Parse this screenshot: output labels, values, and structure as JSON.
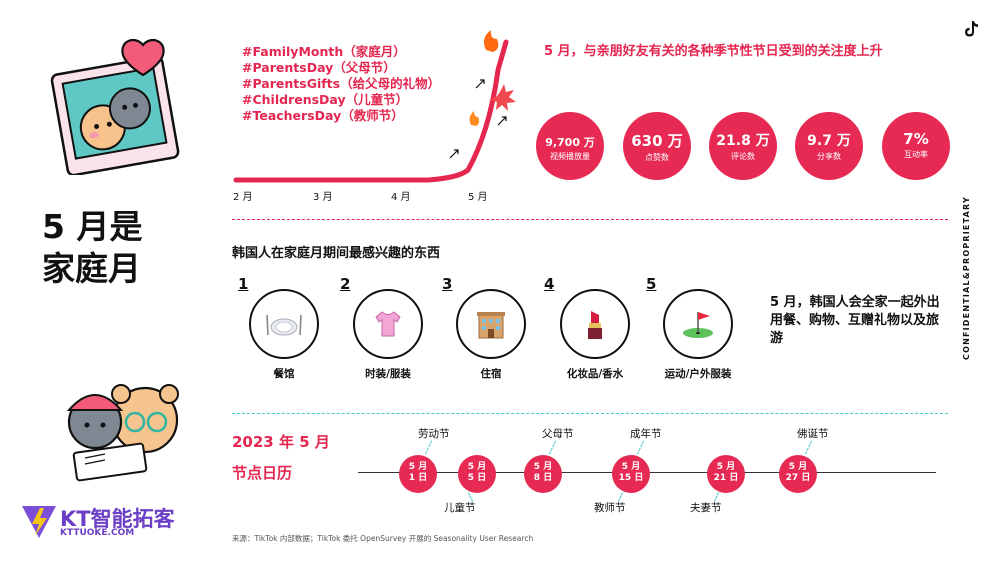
{
  "title_lines": [
    "5 月是",
    "家庭月"
  ],
  "hashtags": [
    "#FamilyMonth（家庭月）",
    "#ParentsDay（父母节）",
    "#ParentsGifts（给父母的礼物）",
    "#ChildrensDay（儿童节）",
    "#TeachersDay（教师节）"
  ],
  "trend": {
    "months": [
      "2 月",
      "3 月",
      "4 月",
      "5 月"
    ],
    "color": "#e5274f"
  },
  "trend_headline": "5 月，与亲朋好友有关的各种季节性节日受到的关注度上升",
  "stats": [
    {
      "value": "9,700 万",
      "label": "视频播放量"
    },
    {
      "value": "630 万",
      "label": "点赞数"
    },
    {
      "value": "21.8 万",
      "label": "评论数"
    },
    {
      "value": "9.7 万",
      "label": "分享数"
    },
    {
      "value": "7%",
      "label": "互动率"
    }
  ],
  "interests": {
    "title": "韩国人在家庭月期间最感兴趣的东西",
    "items": [
      {
        "rank": "1",
        "label": "餐馆",
        "icon": "plate-icon"
      },
      {
        "rank": "2",
        "label": "时装/服装",
        "icon": "shirt-icon"
      },
      {
        "rank": "3",
        "label": "住宿",
        "icon": "hotel-icon"
      },
      {
        "rank": "4",
        "label": "化妆品/香水",
        "icon": "lipstick-icon"
      },
      {
        "rank": "5",
        "label": "运动/户外服装",
        "icon": "golf-flag-icon"
      }
    ],
    "summary": "5 月，韩国人会全家一起外出用餐、购物、互赠礼物以及旅游"
  },
  "calendar": {
    "year_label": "2023 年 5 月",
    "subtitle": "节点日历",
    "dates": [
      {
        "month": "5 月",
        "day": "1 日",
        "holiday": "劳动节",
        "position": "above"
      },
      {
        "month": "5 月",
        "day": "5 日",
        "holiday": "儿童节",
        "position": "below"
      },
      {
        "month": "5 月",
        "day": "8 日",
        "holiday": "父母节",
        "position": "above"
      },
      {
        "month": "5 月",
        "day": "15 日",
        "holiday": "成年节",
        "position": "above",
        "holiday2": "教师节"
      },
      {
        "month": "5 月",
        "day": "21 日",
        "holiday": "夫妻节",
        "position": "below"
      },
      {
        "month": "5 月",
        "day": "27 日",
        "holiday": "佛诞节",
        "position": "above"
      }
    ]
  },
  "source": "来源：TikTok 内部数据；TikTok 委托 OpenSurvey 开展的 Seasonality User Research",
  "brand": {
    "name": "KT智能拓客",
    "url": "KTTUOKE.COM"
  },
  "confidential": "CONFIDENTIAL&PROPRIETARY",
  "colors": {
    "accent": "#e5274f",
    "cyan": "#42c9c8",
    "brand": "#6b3fc6"
  }
}
